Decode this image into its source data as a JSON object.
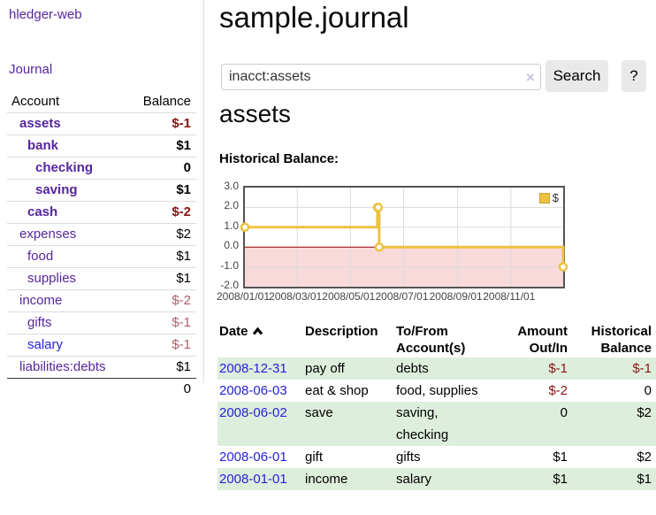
{
  "app": {
    "title": "hledger-web"
  },
  "sidebar": {
    "journal_link": "Journal",
    "accounts_table": {
      "headers": {
        "account": "Account",
        "balance": "Balance"
      },
      "rows": [
        {
          "name": "assets",
          "name_class": "a d1 b",
          "balance": "$-1",
          "balance_class": "v b negs"
        },
        {
          "name": "bank",
          "name_class": "a d2 b",
          "balance": "$1",
          "balance_class": "v b"
        },
        {
          "name": "checking",
          "name_class": "a d3 b",
          "balance": "0",
          "balance_class": "v b"
        },
        {
          "name": "saving",
          "name_class": "a d3 b",
          "balance": "$1",
          "balance_class": "v b"
        },
        {
          "name": "cash",
          "name_class": "a d2 b",
          "balance": "$-2",
          "balance_class": "v b negs"
        },
        {
          "name": "expenses",
          "name_class": "a d1",
          "balance": "$2",
          "balance_class": "v"
        },
        {
          "name": "food",
          "name_class": "a d2",
          "balance": "$1",
          "balance_class": "v"
        },
        {
          "name": "supplies",
          "name_class": "a d2",
          "balance": "$1",
          "balance_class": "v"
        },
        {
          "name": "income",
          "name_class": "a d1",
          "balance": "$-2",
          "balance_class": "v rose"
        },
        {
          "name": "gifts",
          "name_class": "a d2",
          "balance": "$-1",
          "balance_class": "v rose"
        },
        {
          "name": "salary",
          "name_class": "a d2 blue",
          "balance": "$-1",
          "balance_class": "v rose"
        },
        {
          "name": "liabilities:debts",
          "name_class": "a d1",
          "balance": "$1",
          "balance_class": "v"
        }
      ],
      "total": "0"
    }
  },
  "main": {
    "title": "sample.journal",
    "search": {
      "value": "inacct:assets",
      "clear_icon": "×",
      "search_button": "Search",
      "help_button": "?"
    },
    "account_heading": "assets",
    "chart_heading": "Historical Balance:",
    "register": {
      "headers": {
        "date": "Date",
        "description": "Description",
        "tofrom": "To/From Account(s)",
        "amount": "Amount Out/In",
        "balance": "Historical Balance"
      },
      "rows": [
        {
          "row_class": "g",
          "date": "2008-12-31",
          "description": "pay off",
          "accounts": "debts",
          "amount": "$-1",
          "amount_class": "num neg",
          "balance": "$-1",
          "balance_class": "num c5 neg"
        },
        {
          "row_class": "",
          "date": "2008-06-03",
          "description": "eat & shop",
          "accounts": "food, supplies",
          "amount": "$-2",
          "amount_class": "num neg",
          "balance": "0",
          "balance_class": "num c5"
        },
        {
          "row_class": "g",
          "date": "2008-06-02",
          "description": "save",
          "accounts": "saving, checking",
          "amount": "0",
          "amount_class": "num",
          "balance": "$2",
          "balance_class": "num c5"
        },
        {
          "row_class": "",
          "date": "2008-06-01",
          "description": "gift",
          "accounts": "gifts",
          "amount": "$1",
          "amount_class": "num",
          "balance": "$2",
          "balance_class": "num c5"
        },
        {
          "row_class": "g",
          "date": "2008-01-01",
          "description": "income",
          "accounts": "salary",
          "amount": "$1",
          "amount_class": "num",
          "balance": "$1",
          "balance_class": "num c5"
        }
      ]
    }
  },
  "chart_data": {
    "type": "line",
    "step": true,
    "title": "Historical Balance",
    "series": [
      {
        "name": "$",
        "points": [
          [
            "2008-01-01",
            1
          ],
          [
            "2008-06-01",
            2
          ],
          [
            "2008-06-02",
            2
          ],
          [
            "2008-06-03",
            0
          ],
          [
            "2008-12-31",
            -1
          ]
        ]
      }
    ],
    "xlim": [
      "2008-01-01",
      "2008-12-31"
    ],
    "ylim": [
      -2,
      3
    ],
    "yticks": [
      3,
      2,
      1,
      0,
      -1,
      -2
    ],
    "xticks": [
      "2008/01/01",
      "2008/03/01",
      "2008/05/01",
      "2008/07/01",
      "2008/09/01",
      "2008/11/01"
    ],
    "legend": "$",
    "legend_position": "top-right",
    "grid": true,
    "colors": {
      "line": "#edc240",
      "negative_fill": "#f8dada",
      "zero_line": "#a00000",
      "grid": "#dcdcdc"
    }
  }
}
